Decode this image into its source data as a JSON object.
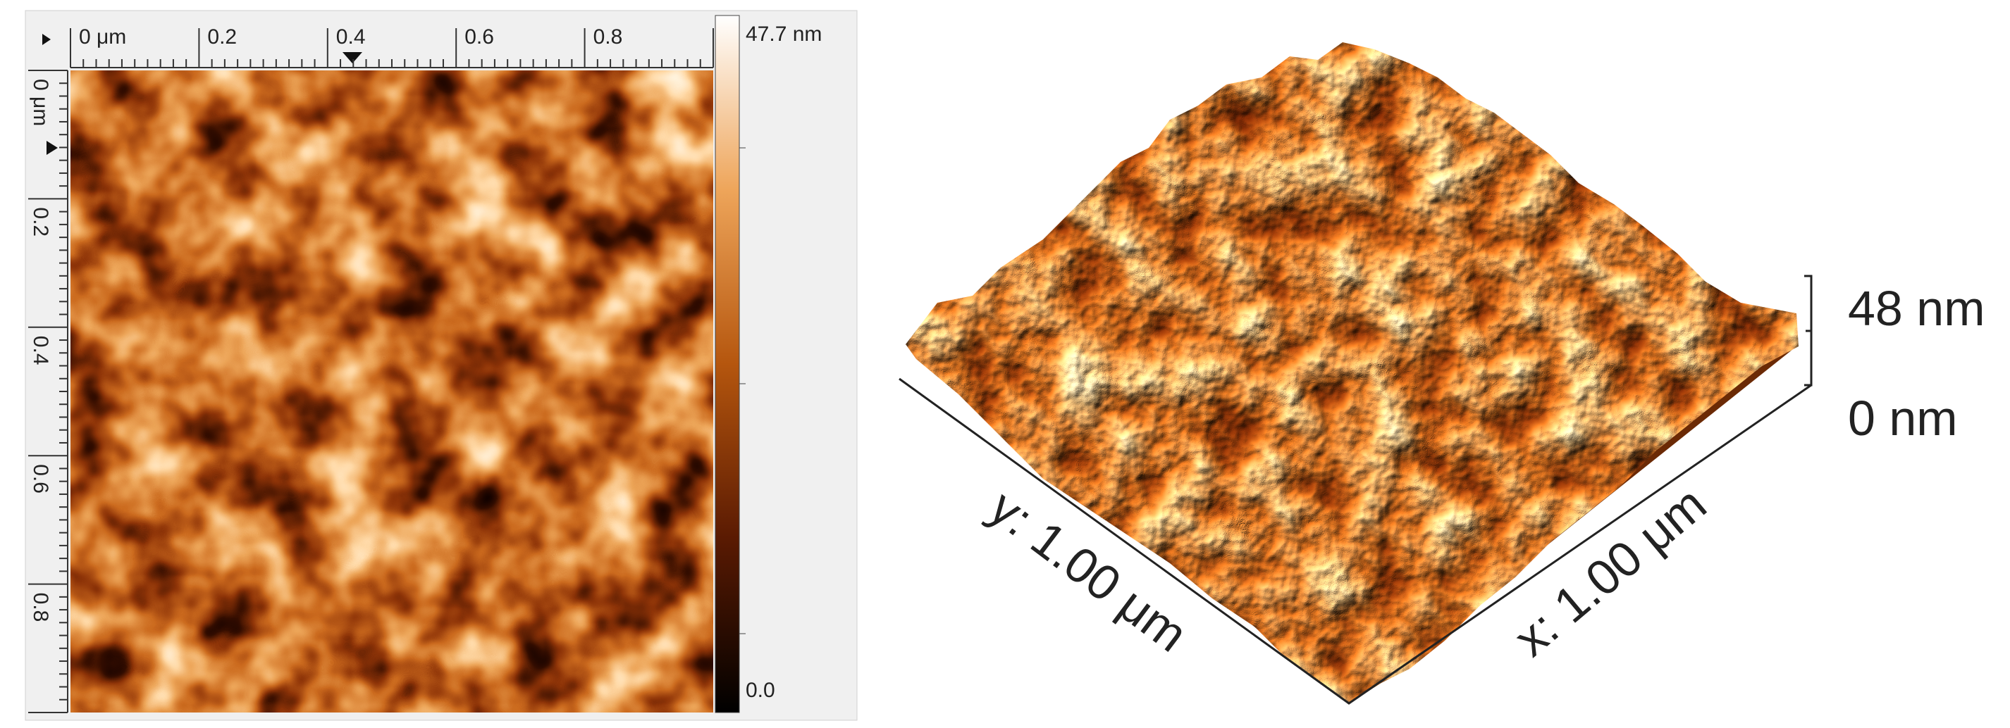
{
  "left_panel": {
    "top_ruler": [
      "0 μm",
      "0.2",
      "0.4",
      "0.6",
      "0.8"
    ],
    "left_ruler": [
      "0 μm",
      "0.2",
      "0.4",
      "0.6",
      "0.8"
    ],
    "colorbar": {
      "max_label": "47.7 nm",
      "min_label": "0.0"
    }
  },
  "right_panel": {
    "z_max_label": "48 nm",
    "z_min_label": "0 nm",
    "y_axis_label": "y: 1.00 μm",
    "x_axis_label": "x: 1.00 μm"
  }
}
